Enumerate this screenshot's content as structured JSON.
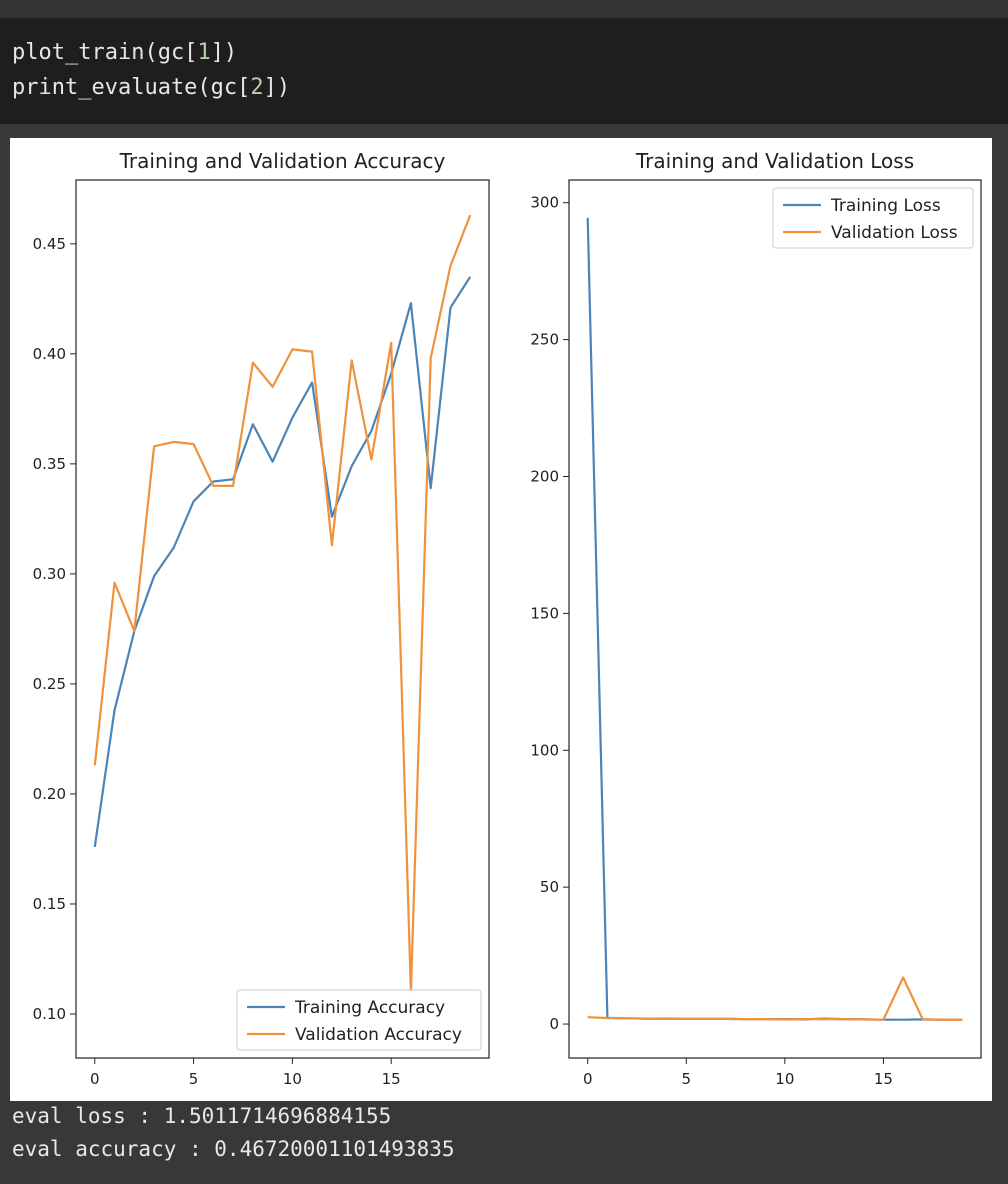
{
  "code": {
    "line1": {
      "pre": "plot_train(gc[",
      "num": "1",
      "post": "])"
    },
    "line2": {
      "pre": "print_evaluate(gc[",
      "num": "2",
      "post": "])"
    }
  },
  "output_text": {
    "eval_loss": "eval loss : 1.5011714696884155",
    "eval_accuracy": "eval accuracy : 0.46720001101493835"
  },
  "colors": {
    "training": "#4c84b8",
    "validation": "#f0913b"
  },
  "chart_data": [
    {
      "type": "line",
      "title": "Training and Validation Accuracy",
      "xlabel": "",
      "ylabel": "",
      "x": [
        0,
        1,
        2,
        3,
        4,
        5,
        6,
        7,
        8,
        9,
        10,
        11,
        12,
        13,
        14,
        15,
        16,
        17,
        18,
        19
      ],
      "xlim": [
        -0.95,
        19.95
      ],
      "ylim": [
        0.08,
        0.479
      ],
      "xticks": [
        0,
        5,
        10,
        15
      ],
      "xtick_labels": [
        "0",
        "5",
        "10",
        "15"
      ],
      "yticks": [
        0.1,
        0.15,
        0.2,
        0.25,
        0.3,
        0.35,
        0.4,
        0.45
      ],
      "ytick_labels": [
        "0.10",
        "0.15",
        "0.20",
        "0.25",
        "0.30",
        "0.35",
        "0.40",
        "0.45"
      ],
      "legend_position": "lower-right",
      "grid": false,
      "series": [
        {
          "name": "Training Accuracy",
          "color": "#4c84b8",
          "values": [
            0.176,
            0.238,
            0.274,
            0.299,
            0.312,
            0.333,
            0.342,
            0.343,
            0.368,
            0.351,
            0.371,
            0.387,
            0.326,
            0.349,
            0.365,
            0.391,
            0.423,
            0.339,
            0.421,
            0.435
          ]
        },
        {
          "name": "Validation Accuracy",
          "color": "#f0913b",
          "values": [
            0.213,
            0.296,
            0.274,
            0.358,
            0.36,
            0.359,
            0.34,
            0.34,
            0.396,
            0.385,
            0.402,
            0.401,
            0.313,
            0.397,
            0.352,
            0.405,
            0.11,
            0.398,
            0.44,
            0.463
          ]
        }
      ]
    },
    {
      "type": "line",
      "title": "Training and Validation Loss",
      "xlabel": "",
      "ylabel": "",
      "x": [
        0,
        1,
        2,
        3,
        4,
        5,
        6,
        7,
        8,
        9,
        10,
        11,
        12,
        13,
        14,
        15,
        16,
        17,
        18,
        19
      ],
      "xlim": [
        -0.95,
        19.95
      ],
      "ylim": [
        -12.4,
        308.3
      ],
      "xticks": [
        0,
        5,
        10,
        15
      ],
      "xtick_labels": [
        "0",
        "5",
        "10",
        "15"
      ],
      "yticks": [
        0,
        50,
        100,
        150,
        200,
        250,
        300
      ],
      "ytick_labels": [
        "0",
        "50",
        "100",
        "150",
        "200",
        "250",
        "300"
      ],
      "legend_position": "upper-right",
      "grid": false,
      "series": [
        {
          "name": "Training Loss",
          "color": "#4c84b8",
          "values": [
            294.5,
            2.3,
            2.1,
            2.0,
            2.0,
            1.9,
            1.9,
            1.9,
            1.8,
            1.8,
            1.8,
            1.7,
            2.0,
            1.8,
            1.7,
            1.6,
            1.6,
            1.7,
            1.6,
            1.6
          ]
        },
        {
          "name": "Validation Loss",
          "color": "#f0913b",
          "values": [
            2.5,
            2.2,
            2.1,
            2.0,
            1.9,
            1.9,
            1.9,
            1.9,
            1.8,
            1.8,
            1.7,
            1.8,
            1.8,
            1.8,
            1.7,
            1.6,
            17.0,
            1.7,
            1.6,
            1.5
          ]
        }
      ]
    }
  ]
}
